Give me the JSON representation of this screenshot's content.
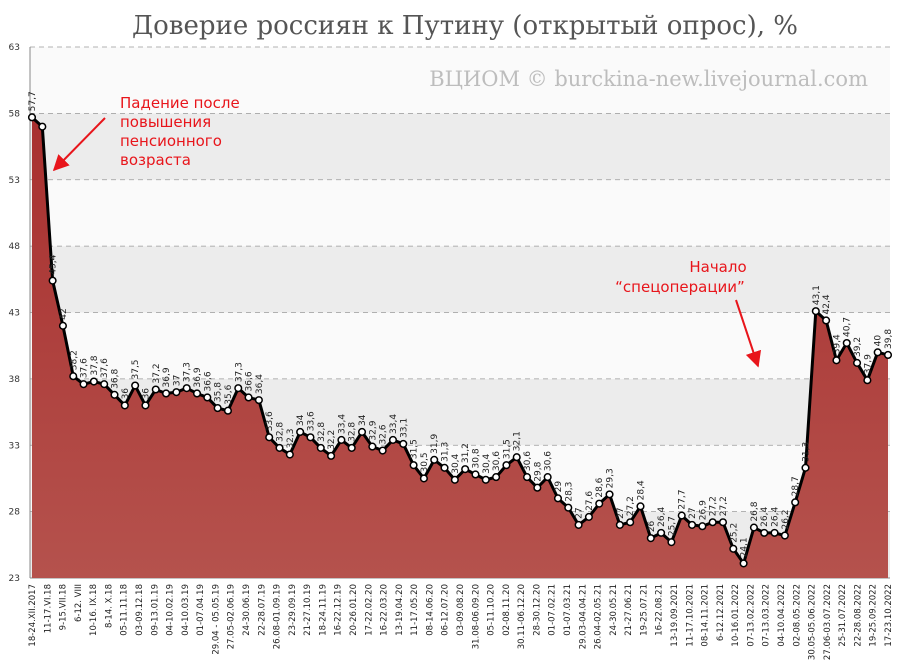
{
  "chart_data": {
    "type": "area",
    "title": "Доверие россиян к Путину (открытый опрос), %",
    "subtitle": "ВЦИОМ © burckina-new.livejournal.com",
    "annotations": [
      {
        "lines": [
          "Падение после",
          "повышения",
          "пенсионного",
          "возраста"
        ]
      },
      {
        "lines": [
          "Начало",
          "“спецоперации”"
        ]
      }
    ],
    "ylim": [
      23,
      63
    ],
    "yticks": [
      23,
      28,
      33,
      38,
      43,
      48,
      53,
      58,
      63
    ],
    "grid": true,
    "color": "#a8302f",
    "line_color": "#000000",
    "x_labels": [
      "18-24.XII.2017",
      "11-17.VI.18",
      "9-15.VII.18",
      "6-12. VIII",
      "10-16. IX.18",
      "8-14. X.18",
      "05-11.11.18",
      "03-09.12.18",
      "09-13.01.19",
      "04-10.02.19",
      "04-10.03.19",
      "01-07.04.19",
      "29.04 - 05.05.19",
      "27.05-02.06.19",
      "24-30.06.19",
      "22-28.07.19",
      "26.08-01.09.19",
      "23-29.09.19",
      "21-27.10.19",
      "18-24.11.19",
      "16-22.12.19",
      "20-26.01.20",
      "17-22.02.20",
      "16-22.03.20",
      "13-19.04.20",
      "11-17.05.20",
      "08-14.06.20",
      "06-12.07.20",
      "03-09.08.20",
      "31.08-06.09.20",
      "05-11.10.20",
      "02-08.11.20",
      "30.11-06.12.20",
      "28-30.12.20",
      "01-07.02.21",
      "01-07.03.21",
      "29.03-04.04.21",
      "26.04-02.05.21",
      "24-30.05.21",
      "21-27.06.21",
      "19-25.07.21",
      "16-22.08.21",
      "13-19.09.2021",
      "11-17.10.2021",
      "08-14.11.2021",
      "6-12.12.2021",
      "10-16.01.2022",
      "07-13.02.2022",
      "07-13.03.2022",
      "04-10.04.2022",
      "02-08.05.2022",
      "30.05-05.06.2022",
      "27.06-03.07.2022",
      "25-31.07.2022",
      "22-28.08.2022",
      "19-25.09.2022",
      "17-23.10.2022"
    ],
    "values": [
      57.7,
      57,
      45.4,
      42,
      38.2,
      37.6,
      37.8,
      37.6,
      36.8,
      36,
      37.5,
      36,
      37.2,
      36.9,
      37,
      37.3,
      36.9,
      36.6,
      35.8,
      35.6,
      37.3,
      36.6,
      36.4,
      33.6,
      32.8,
      32.3,
      34,
      33.6,
      32.8,
      32.2,
      33.4,
      32.8,
      34,
      32.9,
      32.6,
      33.4,
      33.1,
      31.5,
      30.5,
      31.9,
      31.3,
      30.4,
      31.2,
      30.8,
      30.4,
      30.6,
      31.5,
      32.1,
      30.6,
      29.8,
      30.6,
      29,
      28.3,
      27,
      27.6,
      28.6,
      29.3,
      27,
      27.2,
      28.4,
      26,
      26.4,
      25.7,
      27.7,
      27,
      26.9,
      27.2,
      27.2,
      25.2,
      24.1,
      26.8,
      26.4,
      26.4,
      26.2,
      28.7,
      31.3,
      43.1,
      42.4,
      39.4,
      40.7,
      39.2,
      37.9,
      40,
      39.8
    ],
    "value_labels": [
      "57,7",
      null,
      "45,4",
      "42",
      "38,2",
      "37,6",
      "37,8",
      "37,6",
      "36,8",
      "36",
      "37,5",
      "36",
      "37,2",
      "36,9",
      "37",
      "37,3",
      "36,9",
      "36,6",
      "35,8",
      "35,6",
      "37,3",
      "36,6",
      "36,4",
      "33,6",
      "32,8",
      "32,3",
      "34",
      "33,6",
      "32,8",
      "32,2",
      "33,4",
      "32,8",
      "34",
      "32,9",
      "32,6",
      "33,4",
      "33,1",
      "31,5",
      "30,5",
      "31,9",
      "31,3",
      "30,4",
      "31,2",
      "30,8",
      "30,4",
      "30,6",
      "31,5",
      "32,1",
      "30,6",
      "29,8",
      "30,6",
      "29",
      "28,3",
      "27",
      "27,6",
      "28,6",
      "29,3",
      "27",
      "27,2",
      "28,4",
      "26",
      "26,4",
      "25,7",
      "27,7",
      "27",
      "26,9",
      "27,2",
      "27,2",
      "25,2",
      "24,1",
      "26,8",
      "26,4",
      "26,4",
      "26,2",
      "28,7",
      "31,3",
      "43,1",
      "42,4",
      "39,4",
      "40,7",
      "39,2",
      "37,9",
      "40",
      "39,8"
    ]
  }
}
